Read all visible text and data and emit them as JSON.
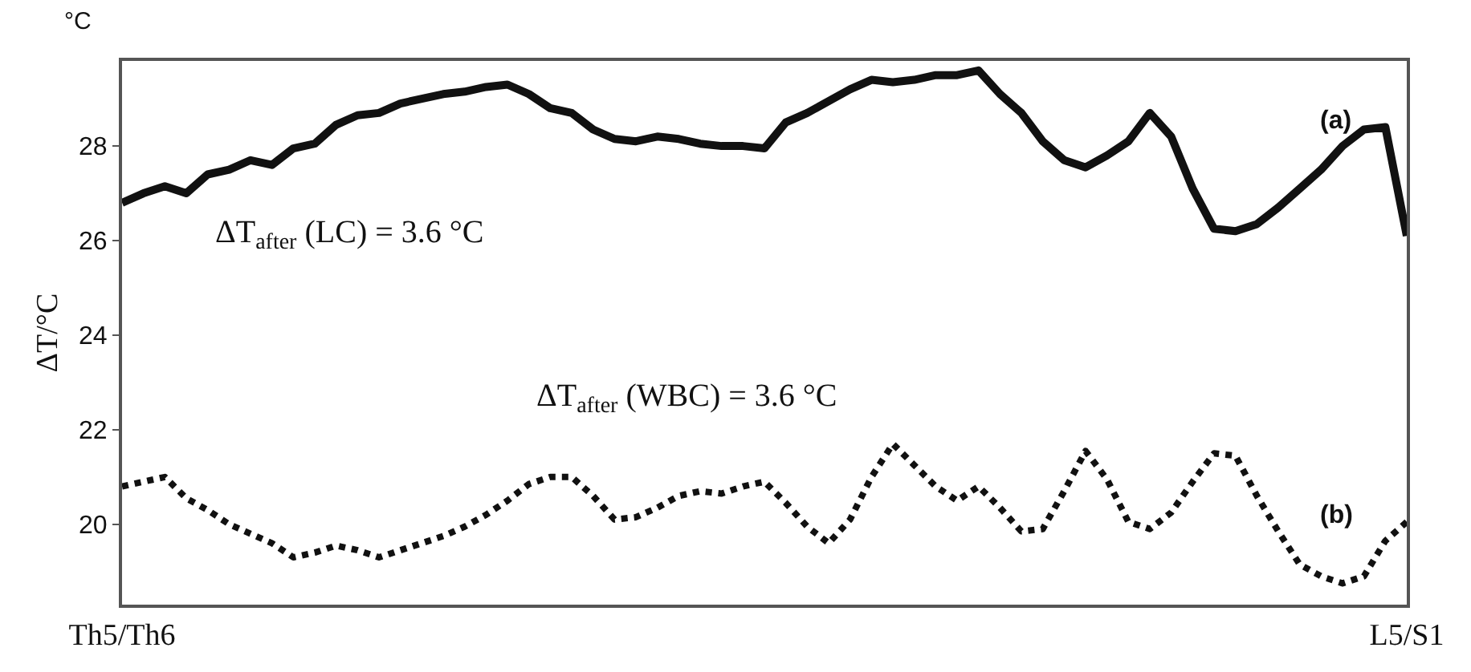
{
  "chart_data": {
    "type": "line",
    "ylabel": "ΔT/°C",
    "categories": [
      "Th5/Th6",
      null,
      null,
      null,
      null,
      null,
      null,
      null,
      null,
      null,
      null,
      null,
      null,
      null,
      null,
      null,
      null,
      null,
      null,
      null,
      null,
      null,
      null,
      null,
      null,
      null,
      null,
      null,
      null,
      null,
      null,
      null,
      null,
      null,
      null,
      null,
      null,
      null,
      null,
      null,
      null,
      null,
      null,
      null,
      null,
      null,
      null,
      null,
      null,
      null,
      null,
      null,
      null,
      null,
      null,
      null,
      null,
      null,
      null,
      null,
      "L5/S1"
    ],
    "ylim": [
      18.3,
      29.8
    ],
    "yticks": [
      20,
      22,
      24,
      26,
      28
    ],
    "marker": "none",
    "series": [
      {
        "color": "#111111",
        "line_style": "solid",
        "values": [
          26.8,
          27.0,
          27.15,
          27.0,
          27.4,
          27.5,
          27.7,
          27.6,
          27.95,
          28.05,
          28.45,
          28.65,
          28.7,
          28.9,
          29.0,
          29.1,
          29.15,
          29.25,
          29.3,
          29.1,
          28.8,
          28.7,
          28.35,
          28.15,
          28.1,
          28.2,
          28.15,
          28.05,
          28.0,
          28.0,
          27.95,
          28.5,
          28.7,
          28.95,
          29.2,
          29.4,
          29.35,
          29.4,
          29.5,
          29.5,
          29.6,
          29.1,
          28.7,
          28.1,
          27.7,
          27.55,
          27.8,
          28.1,
          28.7,
          28.2,
          27.1,
          26.25,
          26.2,
          26.35,
          26.7,
          27.1,
          27.5,
          28.0,
          28.35,
          28.4,
          26.1
        ]
      },
      {
        "color": "#111111",
        "line_style": "dotted",
        "values": [
          20.8,
          20.9,
          21.0,
          20.55,
          20.3,
          20.0,
          19.8,
          19.6,
          19.3,
          19.4,
          19.55,
          19.45,
          19.3,
          19.45,
          19.6,
          19.75,
          19.95,
          20.2,
          20.5,
          20.85,
          21.0,
          21.0,
          20.6,
          20.1,
          20.15,
          20.35,
          20.6,
          20.7,
          20.65,
          20.8,
          20.9,
          20.45,
          19.95,
          19.6,
          20.1,
          21.0,
          21.7,
          21.25,
          20.8,
          20.5,
          20.8,
          20.35,
          19.85,
          19.9,
          20.7,
          21.55,
          20.95,
          20.05,
          19.9,
          20.25,
          20.9,
          21.5,
          21.45,
          20.6,
          19.85,
          19.15,
          18.9,
          18.75,
          18.9,
          19.65,
          20.05
        ]
      }
    ],
    "annotations": [
      "°C",
      "ΔT$_{after}$ (LC) = 3.6 °C",
      "ΔT$_{after}$ (WBC) = 3.6 °C",
      "(a)",
      "(b)"
    ]
  }
}
